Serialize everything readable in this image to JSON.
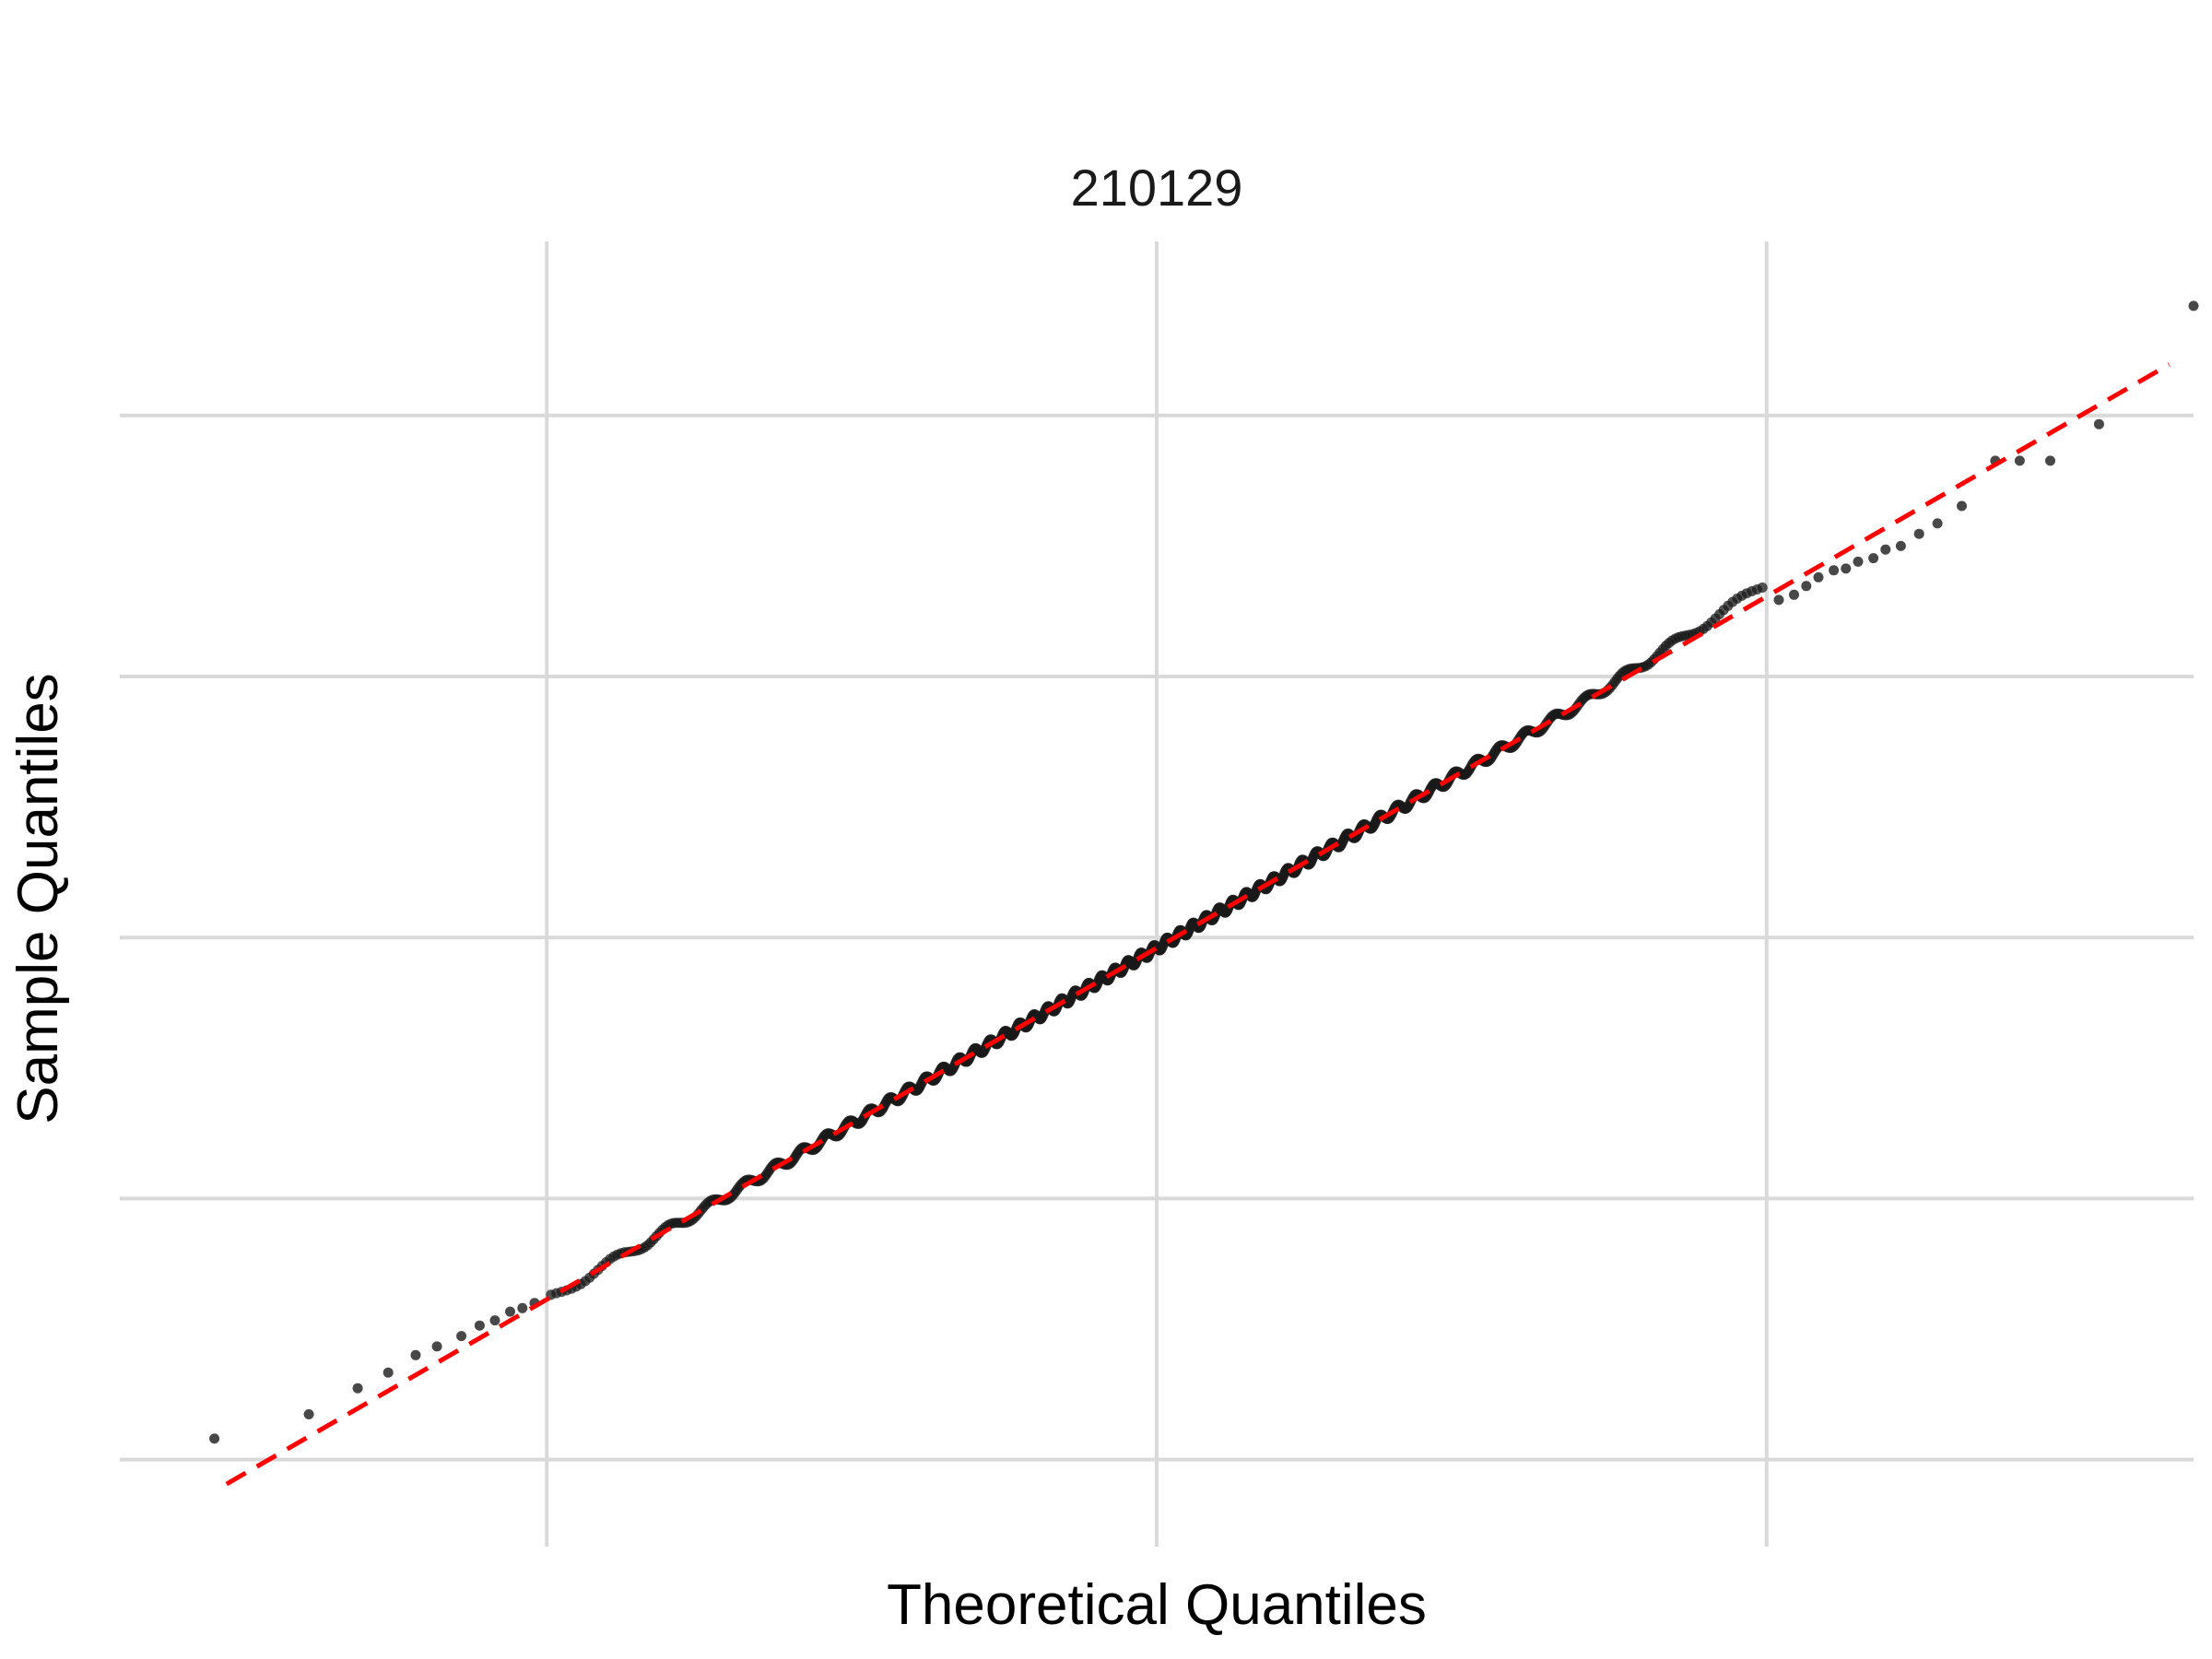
{
  "chart_data": {
    "type": "scatter",
    "title": "210129",
    "xlabel": "Theoretical Quantiles",
    "ylabel": "Sample Quantiles",
    "xlim": [
      -3.4,
      3.4
    ],
    "ylim": [
      -3.5,
      4.0
    ],
    "x_gridlines": [
      -2,
      0,
      2
    ],
    "y_gridlines": [
      -3,
      -1.5,
      0,
      1.5,
      3
    ],
    "tick_labels_visible": false,
    "grid": true,
    "reference_line": {
      "intercept": -0.06,
      "slope": 1.01,
      "from_x": -3.05,
      "to_x": 3.32,
      "style": "dashed"
    },
    "sample_size": 1000,
    "bulk_band": [
      -2.0,
      2.0
    ],
    "tail_points": [
      [
        -3.09,
        -2.88
      ],
      [
        -2.78,
        -2.74
      ],
      [
        -2.62,
        -2.59
      ],
      [
        -2.52,
        -2.5
      ],
      [
        -2.43,
        -2.4
      ],
      [
        -2.36,
        -2.35
      ],
      [
        -2.28,
        -2.29
      ],
      [
        -2.22,
        -2.23
      ],
      [
        -2.17,
        -2.2
      ],
      [
        -2.12,
        -2.15
      ],
      [
        -2.08,
        -2.13
      ],
      [
        -2.04,
        -2.1
      ],
      [
        2.04,
        1.94
      ],
      [
        2.09,
        1.97
      ],
      [
        2.13,
        2.02
      ],
      [
        2.17,
        2.07
      ],
      [
        2.22,
        2.11
      ],
      [
        2.26,
        2.12
      ],
      [
        2.3,
        2.16
      ],
      [
        2.35,
        2.18
      ],
      [
        2.39,
        2.23
      ],
      [
        2.44,
        2.25
      ],
      [
        2.5,
        2.32
      ],
      [
        2.56,
        2.38
      ],
      [
        2.64,
        2.48
      ],
      [
        2.75,
        2.74
      ],
      [
        2.83,
        2.74
      ],
      [
        2.93,
        2.74
      ],
      [
        3.09,
        2.95
      ],
      [
        3.4,
        3.63
      ]
    ],
    "colors": {
      "points": "#1a1a1a",
      "reference_line": "#ff0000",
      "grid": "#d9d9d9"
    }
  }
}
